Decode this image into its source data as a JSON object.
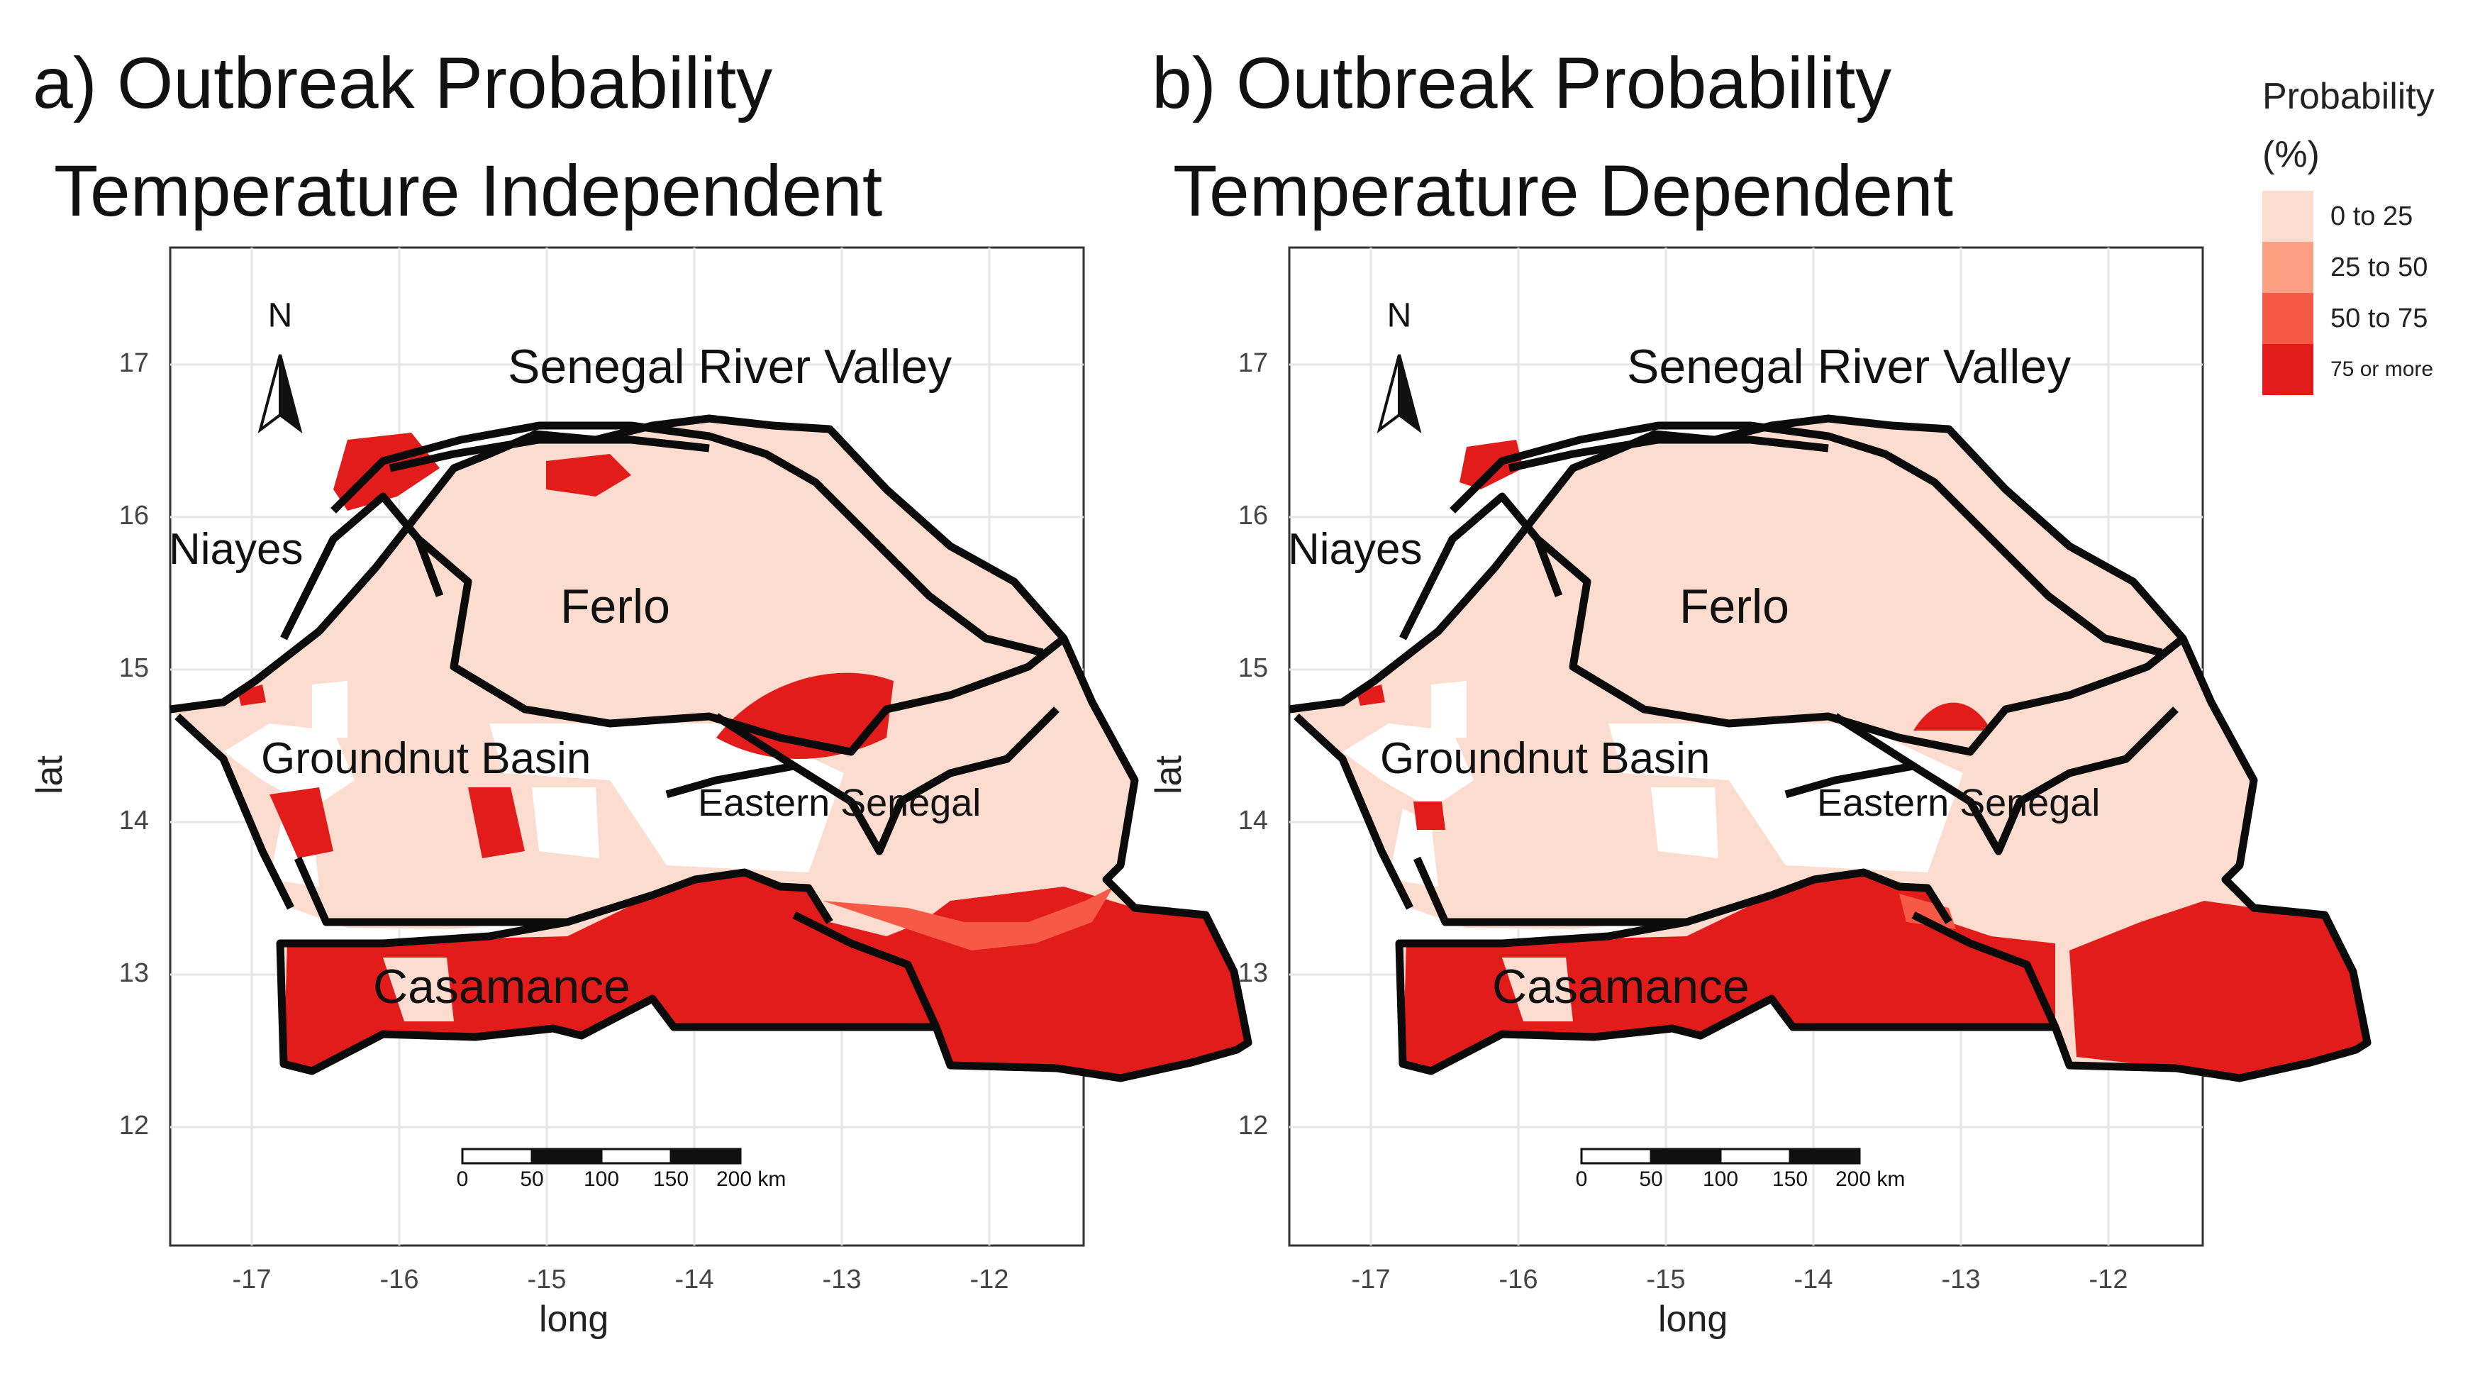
{
  "panels": [
    {
      "title_line1": "a) Outbreak Probability",
      "title_line2": "Temperature Independent"
    },
    {
      "title_line1": "b) Outbreak Probability",
      "title_line2": "Temperature Dependent"
    }
  ],
  "axes": {
    "x_title": "long",
    "y_title": "lat",
    "x_ticks": [
      "-17",
      "-16",
      "-15",
      "-14",
      "-13",
      "-12"
    ],
    "y_ticks": [
      "17",
      "16",
      "15",
      "14",
      "13",
      "12"
    ]
  },
  "regions": [
    "Senegal River Valley",
    "Niayes",
    "Ferlo",
    "Groundnut Basin",
    "Eastern Senegal",
    "Casamance"
  ],
  "north_arrow": "N",
  "scale_bar": {
    "ticks": [
      "0",
      "50",
      "100",
      "150",
      "200 km"
    ]
  },
  "legend": {
    "title_line1": "Probability",
    "title_line2": "(%)",
    "items": [
      {
        "label": "0 to 25",
        "color": "#fddcd0"
      },
      {
        "label": "25 to 50",
        "color": "#fba082"
      },
      {
        "label": "50 to 75",
        "color": "#f65a46"
      },
      {
        "label": "75 or more",
        "color": "#e21b1b"
      }
    ]
  }
}
